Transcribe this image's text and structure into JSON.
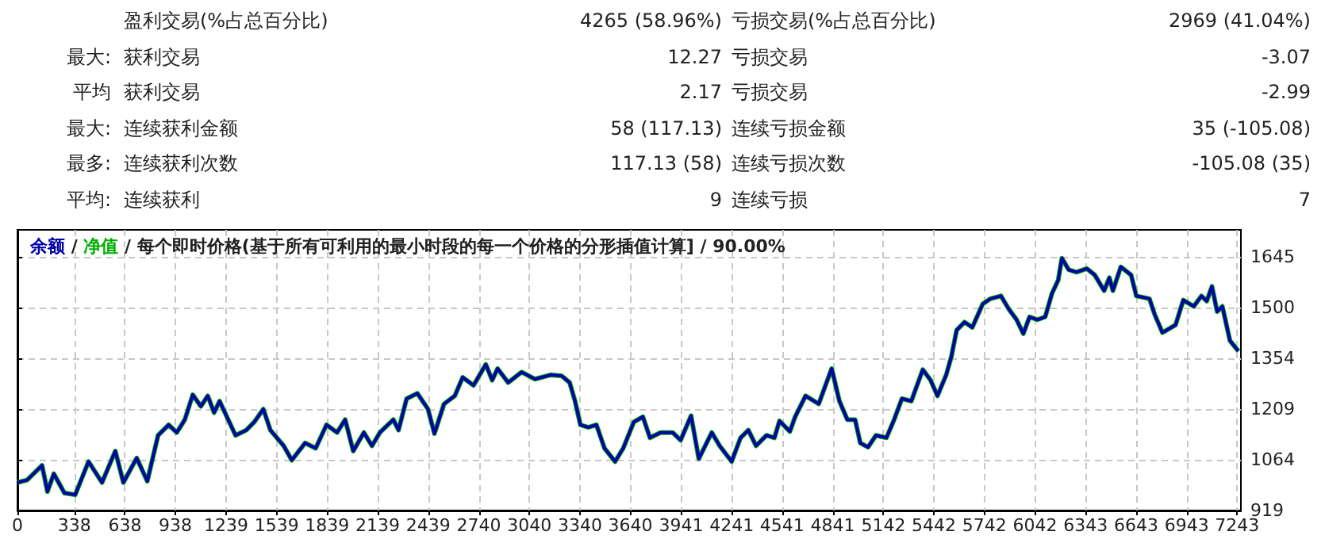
{
  "chart_data": [
    {
      "type": "other",
      "cell_labels": [
        [
          null,
          "盈利交易(%占总百分比)",
          "4265 (58.96%)",
          "亏损交易(%占总百分比)",
          "2969 (41.04%)"
        ],
        [
          "最大:",
          "获利交易",
          "12.27",
          "亏损交易",
          "-3.07"
        ],
        [
          "平均",
          "获利交易",
          "2.17",
          "亏损交易",
          "-2.99"
        ],
        [
          "最大:",
          "连续获利金额",
          "58 (117.13)",
          "连续亏损金额",
          "35 (-105.08)"
        ],
        [
          "最多:",
          "连续获利次数",
          "117.13 (58)",
          "连续亏损次数",
          "-105.08 (35)"
        ],
        [
          "平均:",
          "连续获利",
          "9",
          "连续亏损",
          "7"
        ]
      ]
    },
    {
      "type": "line",
      "legend": "top left",
      "grid": true,
      "marker": "none",
      "line_style": "solid",
      "annotations": [
        "/",
        "每个即时价格(基于所有可利用的最小时段的每一个价格的分形插值计算]",
        "90.00%"
      ],
      "x": [
        0,
        57,
        146,
        178,
        216,
        279,
        343,
        422,
        502,
        581,
        629,
        708,
        771,
        835,
        898,
        946,
        994,
        1041,
        1089,
        1130,
        1168,
        1200,
        1295,
        1359,
        1406,
        1460,
        1502,
        1581,
        1629,
        1708,
        1771,
        1835,
        1898,
        1946,
        1994,
        2057,
        2105,
        2152,
        2232,
        2263,
        2311,
        2375,
        2438,
        2476,
        2533,
        2597,
        2644,
        2708,
        2781,
        2819,
        2851,
        2914,
        2994,
        3073,
        3168,
        3232,
        3279,
        3311,
        3343,
        3390,
        3438,
        3486,
        3549,
        3597,
        3660,
        3714,
        3756,
        3819,
        3891,
        3938,
        4000,
        4046,
        4123,
        4170,
        4241,
        4294,
        4340,
        4386,
        4448,
        4495,
        4525,
        4587,
        4618,
        4680,
        4758,
        4835,
        4881,
        4928,
        4974,
        5005,
        5051,
        5098,
        5160,
        5206,
        5252,
        5308,
        5376,
        5422,
        5463,
        5515,
        5546,
        5577,
        5624,
        5670,
        5732,
        5778,
        5840,
        5887,
        5933,
        5973,
        6010,
        6057,
        6103,
        6143,
        6180,
        6202,
        6242,
        6289,
        6350,
        6397,
        6453,
        6484,
        6505,
        6552,
        6613,
        6644,
        6722,
        6753,
        6799,
        6877,
        6923,
        6985,
        7031,
        7062,
        7093,
        7124,
        7155,
        7200,
        7250
      ],
      "series": [
        {
          "name": "净值",
          "color": "#00b000",
          "values": [
            999,
            1006,
            1048,
            973,
            1024,
            969,
            964,
            1059,
            999,
            1089,
            999,
            1069,
            1003,
            1134,
            1164,
            1142,
            1179,
            1250,
            1217,
            1247,
            1199,
            1232,
            1134,
            1149,
            1172,
            1209,
            1149,
            1104,
            1063,
            1112,
            1097,
            1164,
            1142,
            1179,
            1089,
            1142,
            1104,
            1142,
            1179,
            1149,
            1239,
            1254,
            1209,
            1139,
            1224,
            1247,
            1300,
            1277,
            1337,
            1292,
            1325,
            1285,
            1315,
            1295,
            1307,
            1304,
            1285,
            1232,
            1164,
            1157,
            1164,
            1097,
            1059,
            1097,
            1172,
            1187,
            1127,
            1142,
            1142,
            1120,
            1190,
            1067,
            1142,
            1104,
            1059,
            1127,
            1149,
            1104,
            1134,
            1127,
            1175,
            1145,
            1187,
            1247,
            1224,
            1325,
            1232,
            1179,
            1179,
            1112,
            1100,
            1134,
            1127,
            1179,
            1239,
            1232,
            1322,
            1292,
            1247,
            1307,
            1360,
            1435,
            1458,
            1443,
            1510,
            1525,
            1533,
            1495,
            1465,
            1425,
            1473,
            1465,
            1473,
            1540,
            1578,
            1641,
            1608,
            1601,
            1611,
            1593,
            1548,
            1585,
            1548,
            1616,
            1593,
            1533,
            1525,
            1480,
            1428,
            1450,
            1521,
            1503,
            1533,
            1518,
            1560,
            1488,
            1503,
            1405,
            1375
          ]
        },
        {
          "name": "余额",
          "color": "#0000a8",
          "values": [
            999,
            1006,
            1048,
            973,
            1024,
            969,
            964,
            1059,
            999,
            1089,
            999,
            1069,
            1003,
            1134,
            1164,
            1142,
            1179,
            1250,
            1217,
            1247,
            1199,
            1232,
            1134,
            1149,
            1172,
            1209,
            1149,
            1104,
            1063,
            1112,
            1097,
            1164,
            1142,
            1179,
            1089,
            1142,
            1104,
            1142,
            1179,
            1149,
            1239,
            1254,
            1209,
            1139,
            1224,
            1247,
            1300,
            1277,
            1337,
            1292,
            1325,
            1285,
            1315,
            1295,
            1307,
            1304,
            1285,
            1232,
            1164,
            1157,
            1164,
            1097,
            1059,
            1097,
            1172,
            1187,
            1127,
            1142,
            1142,
            1120,
            1190,
            1067,
            1142,
            1104,
            1059,
            1127,
            1149,
            1104,
            1134,
            1127,
            1175,
            1145,
            1187,
            1247,
            1224,
            1325,
            1232,
            1179,
            1179,
            1112,
            1100,
            1134,
            1127,
            1179,
            1239,
            1232,
            1322,
            1292,
            1247,
            1307,
            1360,
            1435,
            1458,
            1443,
            1510,
            1525,
            1533,
            1495,
            1465,
            1425,
            1473,
            1465,
            1473,
            1540,
            1578,
            1641,
            1608,
            1601,
            1611,
            1593,
            1548,
            1585,
            1548,
            1616,
            1593,
            1533,
            1525,
            1480,
            1428,
            1450,
            1521,
            1503,
            1533,
            1518,
            1560,
            1488,
            1503,
            1405,
            1375
          ]
        }
      ],
      "xlim": [
        0,
        7265
      ],
      "xticks": [
        0,
        338,
        638,
        938,
        1239,
        1539,
        1839,
        2139,
        2439,
        2740,
        3040,
        3340,
        3640,
        3941,
        4241,
        4541,
        4841,
        5142,
        5442,
        5742,
        6042,
        6343,
        6643,
        6943,
        7243
      ],
      "ylim": [
        919,
        1722
      ],
      "yticks": [
        919,
        1064,
        1209,
        1354,
        1500,
        1645
      ]
    }
  ]
}
